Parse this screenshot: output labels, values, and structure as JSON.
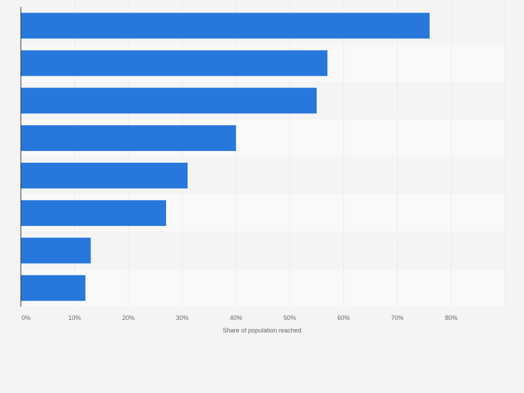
{
  "chart_data": {
    "type": "bar",
    "orientation": "horizontal",
    "categories": [
      "",
      "",
      "",
      "",
      "",
      "",
      "",
      ""
    ],
    "values": [
      76,
      57,
      55,
      40,
      31,
      27,
      13,
      12
    ],
    "xlabel": "Share of population reached",
    "ylabel": "",
    "xlim": [
      0,
      90
    ],
    "x_ticks": [
      {
        "value": 0,
        "label": "0%"
      },
      {
        "value": 10,
        "label": "10%"
      },
      {
        "value": 20,
        "label": "20%"
      },
      {
        "value": 30,
        "label": "30%"
      },
      {
        "value": 40,
        "label": "40%"
      },
      {
        "value": 50,
        "label": "50%"
      },
      {
        "value": 60,
        "label": "60%"
      },
      {
        "value": 70,
        "label": "70%"
      },
      {
        "value": 80,
        "label": "80%"
      }
    ],
    "grid": true,
    "bar_color": "#2878dc",
    "band_colors": [
      "#f4f4f4",
      "#f9f9f9"
    ]
  }
}
